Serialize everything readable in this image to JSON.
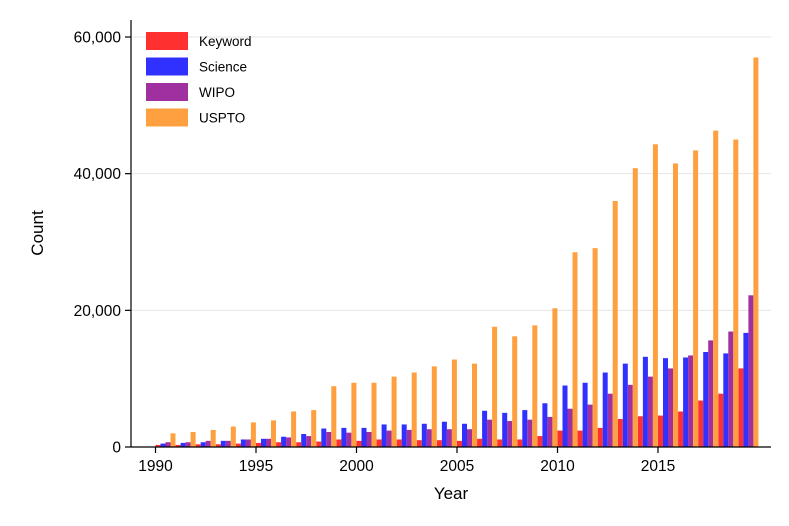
{
  "chart_data": {
    "type": "bar",
    "title": "",
    "xlabel": "Year",
    "ylabel": "Count",
    "ylim": [
      0,
      64000
    ],
    "yticks": [
      0,
      20000,
      40000,
      60000
    ],
    "ytick_labels": [
      "0",
      "20,000",
      "40,000",
      "60,000"
    ],
    "xticks": [
      1990,
      1995,
      2000,
      2005,
      2010,
      2015
    ],
    "xtick_labels": [
      "1990",
      "1995",
      "2000",
      "2005",
      "2010",
      "2015"
    ],
    "grid": "horizontal",
    "legend_position": "top-left",
    "categories": [
      1990,
      1991,
      1992,
      1993,
      1994,
      1995,
      1996,
      1997,
      1998,
      1999,
      2000,
      2001,
      2002,
      2003,
      2004,
      2005,
      2006,
      2007,
      2008,
      2009,
      2010,
      2011,
      2012,
      2013,
      2014,
      2015,
      2016,
      2017,
      2018,
      2019
    ],
    "series": [
      {
        "name": "Keyword",
        "color": "#ff3030",
        "values": [
          300,
          300,
          400,
          400,
          500,
          600,
          700,
          700,
          800,
          1100,
          900,
          1100,
          1100,
          1000,
          1000,
          900,
          1200,
          1100,
          1100,
          1600,
          2400,
          2400,
          2800,
          4100,
          4500,
          4600,
          5200,
          6800,
          7800,
          11500
        ]
      },
      {
        "name": "Science",
        "color": "#3030ff",
        "values": [
          500,
          600,
          700,
          900,
          1100,
          1200,
          1500,
          1900,
          2700,
          2800,
          2800,
          3300,
          3300,
          3400,
          3700,
          3400,
          5300,
          5000,
          5400,
          6400,
          9000,
          9400,
          10900,
          12200,
          13200,
          13000,
          13100,
          13900,
          13700,
          16700
        ]
      },
      {
        "name": "WIPO",
        "color": "#a030a0",
        "values": [
          700,
          700,
          900,
          900,
          1100,
          1200,
          1400,
          1600,
          2200,
          2100,
          2200,
          2400,
          2500,
          2600,
          2600,
          2600,
          4000,
          3800,
          4000,
          4400,
          5600,
          6200,
          7800,
          9100,
          10300,
          11500,
          13400,
          15600,
          16900,
          22200
        ]
      },
      {
        "name": "USPTO",
        "color": "#ffa040",
        "values": [
          2000,
          2200,
          2500,
          3000,
          3600,
          3900,
          5200,
          5400,
          8900,
          9400,
          9400,
          10300,
          10900,
          11800,
          12800,
          12200,
          17600,
          16200,
          17800,
          20300,
          28500,
          29100,
          36000,
          40800,
          44300,
          41500,
          43400,
          46300,
          45000,
          57000
        ]
      }
    ]
  }
}
